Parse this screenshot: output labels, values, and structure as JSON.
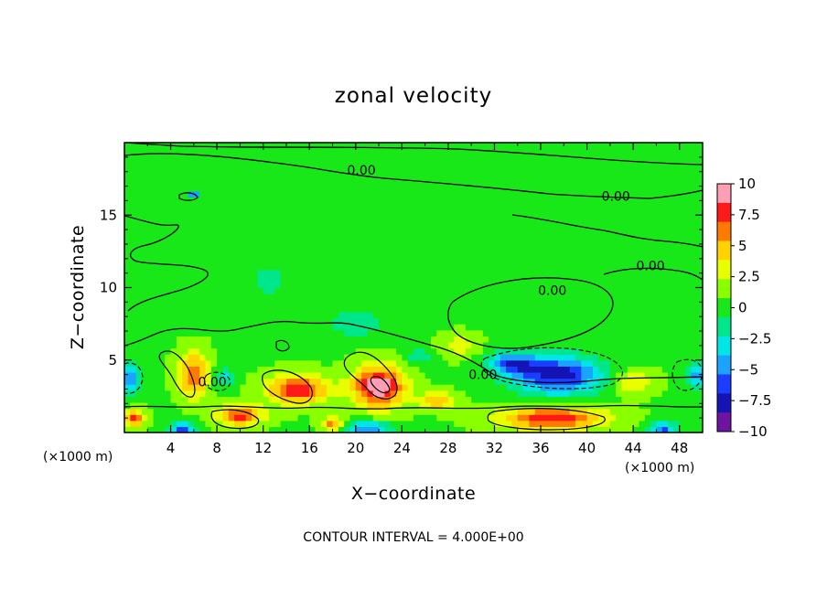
{
  "chart_data": {
    "type": "heatmap",
    "title": "zonal velocity",
    "xlabel": "X−coordinate",
    "ylabel": "Z−coordinate",
    "x_unit_left": "(×1000 m)",
    "x_unit_right": "(×1000 m)",
    "xlim": [
      0,
      50
    ],
    "ylim": [
      0,
      20
    ],
    "x_ticks": [
      4,
      8,
      12,
      16,
      20,
      24,
      28,
      32,
      36,
      40,
      44,
      48
    ],
    "x_tick_labels": [
      "4",
      "8",
      "12",
      "16",
      "20",
      "24",
      "28",
      "32",
      "36",
      "40",
      "44",
      "48"
    ],
    "y_ticks": [
      5,
      10,
      15
    ],
    "y_tick_labels": [
      "5",
      "10",
      "15"
    ],
    "contour_label": "0.00",
    "contour_labels": [
      {
        "x": 20.5,
        "z": 17.8
      },
      {
        "x": 42.5,
        "z": 16.0
      },
      {
        "x": 45.5,
        "z": 11.2
      },
      {
        "x": 37.0,
        "z": 9.5
      },
      {
        "x": 7.6,
        "z": 3.2
      },
      {
        "x": 31.0,
        "z": 3.7
      }
    ],
    "footer": "CONTOUR INTERVAL = 4.000E+00",
    "colorbar": {
      "range": [
        -10,
        10
      ],
      "tick_values": [
        10,
        7.5,
        5,
        2.5,
        0,
        -2.5,
        -5,
        -7.5,
        -10
      ],
      "tick_labels": [
        "10",
        "7.5",
        "5",
        "2.5",
        "0",
        "−2.5",
        "−5",
        "−7.5",
        "−10"
      ],
      "colors": [
        "#ff9fb5",
        "#ff1a1a",
        "#ff7a00",
        "#ffd200",
        "#e8ff00",
        "#8aff00",
        "#18e818",
        "#00e68a",
        "#00e6e6",
        "#1aa3ff",
        "#1a3dff",
        "#1414b4",
        "#6e14a0"
      ]
    },
    "features": [
      {
        "x": 22.0,
        "z": 3.2,
        "sx": 2.2,
        "sz": 1.4,
        "amp": 9.5
      },
      {
        "x": 15.0,
        "z": 3.0,
        "sx": 2.6,
        "sz": 1.0,
        "amp": 7.5
      },
      {
        "x": 6.0,
        "z": 4.0,
        "sx": 1.3,
        "sz": 1.5,
        "amp": 6.5
      },
      {
        "x": 10.0,
        "z": 1.2,
        "sx": 2.0,
        "sz": 0.7,
        "amp": 7.0
      },
      {
        "x": 0.8,
        "z": 1.0,
        "sx": 0.9,
        "sz": 0.6,
        "amp": 6.5
      },
      {
        "x": 18.0,
        "z": 0.6,
        "sx": 1.0,
        "sz": 0.5,
        "amp": 5.5
      },
      {
        "x": 27.0,
        "z": 2.2,
        "sx": 1.6,
        "sz": 0.6,
        "amp": 4.5
      },
      {
        "x": 37.0,
        "z": 1.0,
        "sx": 4.5,
        "sz": 0.8,
        "amp": 7.5
      },
      {
        "x": 44.0,
        "z": 3.5,
        "sx": 1.8,
        "sz": 0.8,
        "amp": 3.5
      },
      {
        "x": 29.0,
        "z": 6.0,
        "sx": 1.6,
        "sz": 0.8,
        "amp": 2.5
      },
      {
        "x": 37.5,
        "z": 4.0,
        "sx": 3.8,
        "sz": 1.3,
        "amp": -8.5
      },
      {
        "x": 33.5,
        "z": 4.8,
        "sx": 2.0,
        "sz": 0.8,
        "amp": -6.0
      },
      {
        "x": 5.0,
        "z": 0.3,
        "sx": 1.0,
        "sz": 0.5,
        "amp": -7.0
      },
      {
        "x": 21.0,
        "z": 0.3,
        "sx": 2.0,
        "sz": 0.5,
        "amp": -6.0
      },
      {
        "x": 46.5,
        "z": 0.3,
        "sx": 1.2,
        "sz": 0.5,
        "amp": -6.5
      },
      {
        "x": 0.5,
        "z": 3.8,
        "sx": 0.8,
        "sz": 1.2,
        "amp": -5.5
      },
      {
        "x": 49.5,
        "z": 4.0,
        "sx": 0.8,
        "sz": 1.0,
        "amp": -5.0
      },
      {
        "x": 8.5,
        "z": 3.8,
        "sx": 0.9,
        "sz": 0.7,
        "amp": -3.5
      },
      {
        "x": 25.5,
        "z": 5.3,
        "sx": 1.2,
        "sz": 0.5,
        "amp": -3.0
      },
      {
        "x": 12.5,
        "z": 10.5,
        "sx": 1.5,
        "sz": 1.0,
        "amp": -2.6
      },
      {
        "x": 20.0,
        "z": 7.5,
        "sx": 2.5,
        "sz": 1.0,
        "amp": -2.6
      },
      {
        "x": 6.0,
        "z": 16.5,
        "sx": 0.6,
        "sz": 0.3,
        "amp": -6.0
      }
    ]
  }
}
